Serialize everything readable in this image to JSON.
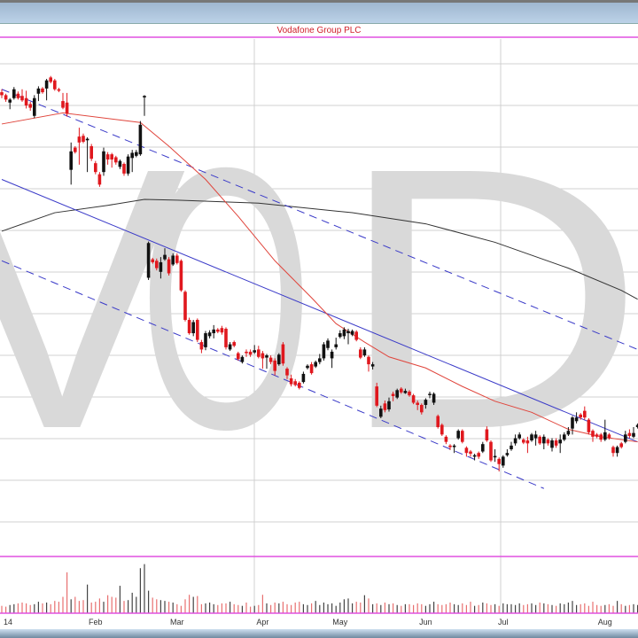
{
  "title": "Vodafone Group PLC",
  "watermark": "VOD",
  "colors": {
    "up": "#111111",
    "down": "#e0181e",
    "ma_short": "#e0453c",
    "ma_long": "#333333",
    "channel": "#3a3ac8",
    "separator": "#e050e0",
    "grid": "#d0d0d0",
    "watermark": "#d9d9d9"
  },
  "chart_data": {
    "type": "candlestick",
    "title": "Vodafone Group PLC",
    "ylim": [
      178,
      248
    ],
    "volume_ylim": [
      0,
      130
    ],
    "x_labels": [
      {
        "index": 0,
        "label": "14"
      },
      {
        "index": 23,
        "label": "Feb"
      },
      {
        "index": 43,
        "label": "Mar"
      },
      {
        "index": 64,
        "label": "Apr"
      },
      {
        "index": 83,
        "label": "May"
      },
      {
        "index": 104,
        "label": "Jun"
      },
      {
        "index": 123,
        "label": "Jul"
      },
      {
        "index": 148,
        "label": "Aug"
      }
    ],
    "candles_ohlc": [
      [
        240.8,
        241.2,
        240.0,
        240.4
      ],
      [
        240.4,
        240.6,
        239.5,
        239.8
      ],
      [
        239.4,
        240.0,
        238.5,
        239.8
      ],
      [
        240.0,
        241.5,
        239.8,
        241.2
      ],
      [
        240.6,
        240.9,
        239.8,
        240.0
      ],
      [
        240.3,
        241.2,
        239.5,
        239.7
      ],
      [
        240.0,
        241.0,
        238.6,
        239.0
      ],
      [
        239.2,
        239.5,
        238.3,
        238.7
      ],
      [
        237.6,
        240.4,
        237.3,
        240.0
      ],
      [
        240.6,
        241.6,
        239.6,
        241.3
      ],
      [
        241.3,
        241.5,
        240.6,
        240.8
      ],
      [
        241.3,
        242.6,
        239.7,
        242.4
      ],
      [
        242.8,
        243.0,
        242.0,
        242.2
      ],
      [
        242.4,
        242.6,
        241.0,
        241.2
      ],
      [
        241.2,
        241.4,
        240.8,
        241.0
      ],
      [
        239.6,
        240.7,
        238.5,
        238.7
      ],
      [
        239.4,
        240.7,
        237.5,
        237.9
      ],
      [
        230.3,
        234.0,
        228.3,
        232.8
      ],
      [
        233.3,
        233.5,
        232.5,
        232.7
      ],
      [
        234.8,
        236.0,
        231.0,
        234.0
      ],
      [
        234.9,
        235.2,
        233.9,
        234.1
      ],
      [
        234.3,
        234.7,
        230.0,
        234.5
      ],
      [
        233.5,
        233.8,
        231.5,
        231.8
      ],
      [
        231.2,
        231.5,
        229.7,
        230.0
      ],
      [
        229.7,
        230.0,
        228.0,
        228.3
      ],
      [
        230.0,
        233.3,
        229.5,
        232.8
      ],
      [
        232.4,
        232.7,
        231.0,
        231.7
      ],
      [
        232.4,
        232.6,
        230.6,
        231.7
      ],
      [
        232.0,
        232.2,
        231.0,
        231.3
      ],
      [
        230.7,
        231.7,
        230.4,
        231.5
      ],
      [
        231.1,
        231.3,
        229.5,
        229.8
      ],
      [
        229.8,
        232.4,
        229.5,
        232.1
      ],
      [
        231.9,
        233.0,
        230.0,
        232.6
      ],
      [
        232.2,
        233.0,
        232.0,
        232.7
      ],
      [
        232.4,
        236.9,
        232.2,
        236.4
      ],
      [
        240.1,
        240.4,
        237.6,
        240.3
      ],
      [
        215.7,
        220.6,
        215.4,
        220.4
      ],
      [
        218.2,
        218.4,
        217.6,
        217.8
      ],
      [
        218.0,
        218.3,
        216.7,
        217.0
      ],
      [
        216.5,
        218.5,
        215.6,
        217.8
      ],
      [
        218.2,
        219.7,
        218.0,
        218.8
      ],
      [
        218.2,
        218.5,
        216.0,
        216.3
      ],
      [
        217.5,
        219.0,
        217.3,
        218.7
      ],
      [
        218.7,
        219.0,
        217.5,
        217.7
      ],
      [
        218.0,
        218.2,
        213.8,
        214.0
      ],
      [
        213.8,
        214.0,
        209.8,
        210.0
      ],
      [
        210.0,
        210.3,
        208.0,
        208.2
      ],
      [
        208.2,
        210.0,
        207.8,
        209.7
      ],
      [
        210.0,
        210.2,
        207.0,
        207.3
      ],
      [
        207.0,
        207.3,
        205.5,
        206.0
      ],
      [
        206.3,
        208.5,
        205.9,
        208.2
      ],
      [
        207.8,
        208.6,
        207.5,
        208.3
      ],
      [
        208.2,
        209.3,
        207.5,
        208.7
      ],
      [
        208.7,
        208.9,
        208.2,
        208.4
      ],
      [
        208.9,
        209.2,
        208.0,
        208.3
      ],
      [
        208.8,
        209.0,
        206.0,
        206.3
      ],
      [
        206.0,
        207.0,
        205.8,
        206.7
      ],
      [
        207.0,
        207.2,
        206.3,
        206.5
      ],
      [
        205.5,
        205.7,
        204.5,
        204.7
      ],
      [
        204.3,
        205.2,
        204.1,
        205.0
      ],
      [
        205.7,
        206.0,
        205.0,
        205.5
      ],
      [
        205.7,
        206.0,
        205.0,
        205.3
      ],
      [
        205.6,
        206.6,
        205.4,
        205.9
      ],
      [
        206.0,
        206.5,
        204.8,
        205.0
      ],
      [
        205.5,
        205.8,
        203.4,
        204.8
      ],
      [
        204.9,
        205.4,
        203.4,
        205.2
      ],
      [
        204.9,
        205.2,
        204.0,
        204.3
      ],
      [
        204.5,
        204.8,
        202.5,
        203.1
      ],
      [
        204.0,
        205.5,
        203.8,
        205.3
      ],
      [
        206.7,
        207.0,
        203.8,
        204.1
      ],
      [
        203.4,
        203.6,
        202.0,
        202.5
      ],
      [
        202.1,
        202.6,
        201.0,
        201.3
      ],
      [
        201.7,
        202.0,
        201.0,
        201.2
      ],
      [
        201.5,
        201.7,
        200.6,
        200.8
      ],
      [
        201.6,
        203.0,
        201.4,
        202.7
      ],
      [
        203.5,
        204.0,
        203.3,
        203.8
      ],
      [
        204.0,
        204.3,
        202.6,
        202.8
      ],
      [
        203.7,
        204.5,
        203.5,
        204.3
      ],
      [
        204.3,
        205.4,
        204.0,
        204.8
      ],
      [
        204.8,
        207.0,
        204.5,
        206.7
      ],
      [
        206.2,
        207.5,
        205.9,
        207.2
      ],
      [
        204.8,
        206.0,
        203.5,
        205.7
      ],
      [
        206.3,
        207.6,
        206.0,
        206.7
      ],
      [
        207.7,
        208.6,
        207.5,
        208.2
      ],
      [
        207.8,
        209.0,
        207.4,
        208.7
      ],
      [
        208.2,
        208.8,
        206.7,
        208.5
      ],
      [
        208.0,
        208.7,
        207.8,
        208.5
      ],
      [
        208.4,
        208.6,
        207.1,
        207.3
      ],
      [
        206.0,
        206.3,
        204.7,
        204.9
      ],
      [
        205.2,
        206.3,
        205.0,
        206.0
      ],
      [
        205.0,
        205.2,
        203.0,
        204.0
      ],
      [
        203.7,
        204.3,
        203.3,
        204.0
      ],
      [
        201.0,
        201.5,
        198.2,
        198.4
      ],
      [
        196.9,
        198.4,
        196.7,
        198.0
      ],
      [
        198.7,
        199.1,
        197.5,
        197.8
      ],
      [
        197.9,
        199.5,
        197.6,
        199.0
      ],
      [
        200.0,
        200.3,
        199.0,
        199.7
      ],
      [
        199.5,
        200.7,
        199.3,
        200.5
      ],
      [
        200.7,
        200.9,
        200.0,
        200.2
      ],
      [
        200.1,
        200.7,
        200.0,
        200.4
      ],
      [
        200.3,
        200.5,
        199.6,
        199.8
      ],
      [
        199.8,
        200.0,
        198.6,
        198.8
      ],
      [
        198.8,
        199.1,
        197.8,
        198.5
      ],
      [
        198.5,
        198.7,
        197.2,
        197.5
      ],
      [
        198.5,
        199.4,
        198.0,
        199.2
      ],
      [
        199.9,
        200.3,
        199.4,
        200.0
      ],
      [
        198.8,
        200.2,
        198.5,
        200.0
      ],
      [
        197.0,
        197.2,
        195.3,
        195.5
      ],
      [
        195.8,
        196.0,
        194.3,
        194.5
      ],
      [
        194.2,
        194.4,
        193.2,
        193.5
      ],
      [
        193.0,
        193.2,
        192.4,
        192.8
      ],
      [
        192.8,
        193.2,
        192.0,
        193.0
      ],
      [
        194.0,
        195.2,
        193.8,
        195.0
      ],
      [
        195.0,
        195.2,
        193.3,
        193.5
      ],
      [
        192.7,
        192.9,
        191.5,
        192.0
      ],
      [
        192.2,
        192.4,
        191.5,
        191.9
      ],
      [
        191.5,
        191.9,
        191.0,
        191.7
      ],
      [
        192.0,
        192.2,
        191.2,
        191.5
      ],
      [
        192.2,
        193.5,
        192.0,
        193.2
      ],
      [
        195.2,
        195.6,
        193.5,
        193.7
      ],
      [
        193.5,
        193.7,
        190.8,
        191.0
      ],
      [
        191.4,
        192.5,
        190.8,
        191.6
      ],
      [
        191.2,
        191.4,
        189.5,
        190.5
      ],
      [
        190.3,
        191.7,
        190.0,
        191.5
      ],
      [
        191.7,
        192.5,
        191.5,
        192.0
      ],
      [
        192.5,
        193.5,
        192.3,
        193.0
      ],
      [
        193.3,
        194.5,
        193.0,
        194.0
      ],
      [
        194.0,
        194.8,
        193.8,
        194.5
      ],
      [
        193.8,
        194.0,
        193.2,
        193.4
      ],
      [
        193.7,
        194.2,
        192.0,
        193.3
      ],
      [
        193.7,
        194.7,
        193.5,
        194.5
      ],
      [
        194.0,
        195.0,
        193.0,
        194.5
      ],
      [
        194.2,
        194.4,
        193.1,
        193.3
      ],
      [
        193.3,
        194.5,
        192.5,
        194.2
      ],
      [
        193.8,
        194.0,
        193.0,
        193.3
      ],
      [
        192.7,
        194.0,
        192.2,
        193.7
      ],
      [
        193.7,
        194.0,
        192.7,
        193.0
      ],
      [
        193.3,
        194.5,
        192.0,
        193.8
      ],
      [
        193.8,
        194.8,
        193.6,
        194.5
      ],
      [
        194.5,
        195.5,
        194.3,
        195.0
      ],
      [
        195.3,
        197.0,
        194.5,
        196.8
      ],
      [
        196.3,
        197.5,
        196.0,
        196.8
      ],
      [
        197.2,
        197.4,
        196.5,
        196.8
      ],
      [
        197.7,
        198.3,
        196.5,
        196.8
      ],
      [
        196.5,
        196.7,
        194.5,
        194.8
      ],
      [
        195.0,
        195.2,
        193.5,
        194.2
      ],
      [
        194.5,
        194.7,
        194.0,
        194.2
      ],
      [
        194.5,
        194.7,
        193.5,
        193.8
      ],
      [
        193.8,
        196.5,
        193.6,
        194.8
      ],
      [
        194.5,
        194.7,
        193.8,
        194.0
      ],
      [
        192.8,
        193.0,
        191.5,
        192.0
      ],
      [
        192.0,
        193.0,
        191.5,
        192.8
      ],
      [
        193.3,
        193.5,
        192.6,
        192.8
      ],
      [
        193.5,
        195.0,
        193.3,
        194.5
      ],
      [
        194.7,
        195.2,
        194.0,
        194.3
      ],
      [
        194.2,
        195.5,
        194.0,
        194.7
      ],
      [
        195.5,
        196.0,
        195.3,
        195.8
      ]
    ],
    "volume": [
      18,
      16,
      20,
      22,
      24,
      26,
      24,
      20,
      22,
      28,
      24,
      26,
      22,
      30,
      28,
      40,
      100,
      34,
      40,
      30,
      32,
      70,
      26,
      28,
      36,
      28,
      44,
      40,
      38,
      67,
      30,
      32,
      50,
      40,
      110,
      120,
      55,
      38,
      34,
      32,
      30,
      28,
      26,
      22,
      18,
      34,
      45,
      40,
      42,
      22,
      24,
      26,
      22,
      20,
      24,
      24,
      28,
      22,
      20,
      18,
      26,
      16,
      18,
      20,
      45,
      24,
      20,
      26,
      24,
      28,
      22,
      20,
      26,
      28,
      22,
      20,
      24,
      30,
      20,
      26,
      22,
      24,
      18,
      26,
      34,
      36,
      24,
      28,
      26,
      44,
      36,
      22,
      24,
      20,
      26,
      22,
      24,
      20,
      18,
      22,
      22,
      20,
      24,
      22,
      18,
      22,
      28,
      22,
      20,
      22,
      26,
      22,
      20,
      24,
      20,
      28,
      18,
      20,
      26,
      24,
      20,
      22,
      18,
      24,
      22,
      22,
      20,
      24,
      20,
      22,
      24,
      20,
      26,
      24,
      22,
      20,
      18,
      24,
      22,
      26,
      30,
      20,
      22,
      24,
      18,
      28,
      20,
      18,
      20,
      22,
      18,
      30,
      22,
      18,
      20,
      22,
      20
    ],
    "ma_short": [
      [
        0,
        236.5
      ],
      [
        15,
        238.0
      ],
      [
        34,
        236.7
      ],
      [
        41,
        233.5
      ],
      [
        50,
        229.0
      ],
      [
        58,
        224.0
      ],
      [
        67,
        218.0
      ],
      [
        76,
        213.0
      ],
      [
        82,
        209.5
      ],
      [
        89,
        207.0
      ],
      [
        95,
        205.0
      ],
      [
        104,
        203.5
      ],
      [
        113,
        201.0
      ],
      [
        121,
        199.0
      ],
      [
        130,
        197.5
      ],
      [
        139,
        195.2
      ],
      [
        147,
        194.2
      ],
      [
        156,
        193.5
      ]
    ],
    "ma_long": [
      [
        0,
        222.0
      ],
      [
        13,
        224.5
      ],
      [
        26,
        225.5
      ],
      [
        35,
        226.3
      ],
      [
        43,
        226.2
      ],
      [
        63,
        225.8
      ],
      [
        86,
        224.5
      ],
      [
        104,
        223.0
      ],
      [
        121,
        220.5
      ],
      [
        139,
        217.0
      ],
      [
        152,
        214.0
      ],
      [
        156,
        212.8
      ]
    ],
    "trend_channel": {
      "center": [
        [
          0,
          229.0
        ],
        [
          156,
          193.5
        ]
      ],
      "upper": [
        [
          0,
          241.2
        ],
        [
          156,
          206.0
        ]
      ],
      "lower": [
        [
          0,
          218.0
        ],
        [
          133,
          187.2
        ]
      ]
    }
  }
}
